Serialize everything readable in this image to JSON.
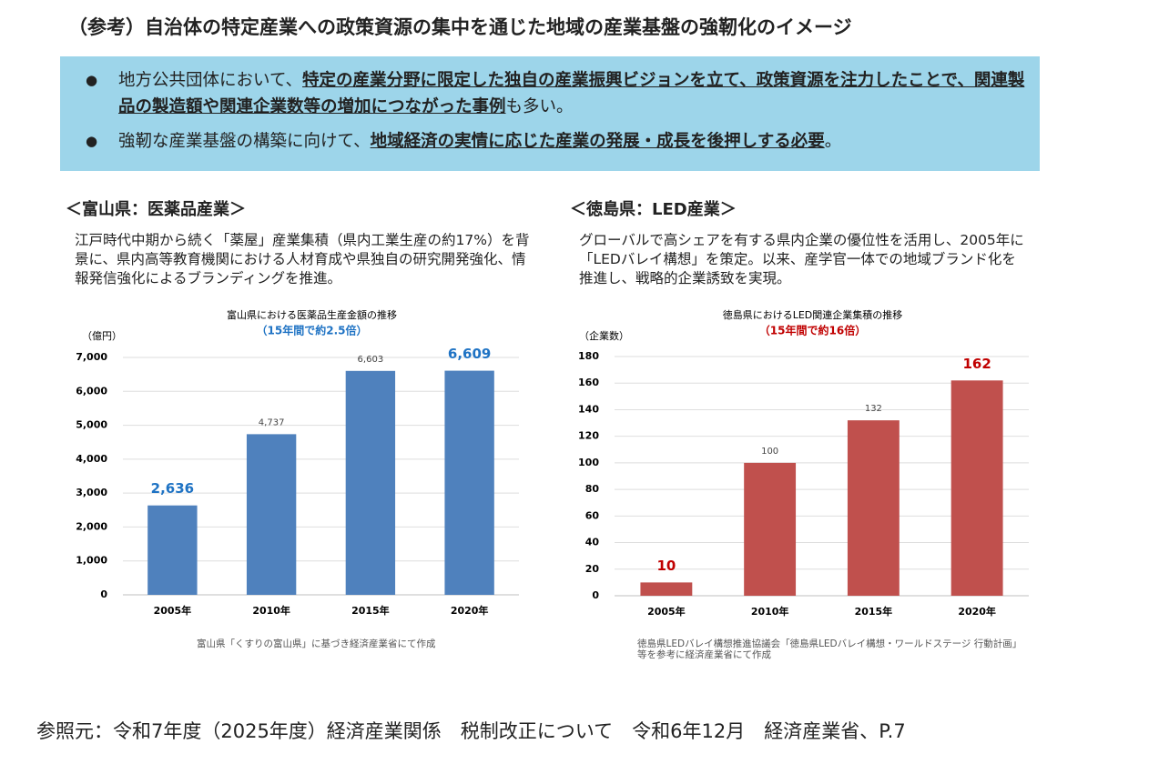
{
  "title": "（参考）自治体の特定産業への政策資源の集中を通じた地域の産業基盤の強靭化のイメージ",
  "bullets": [
    [
      {
        "text": "地方公共団体において、",
        "bold": false
      },
      {
        "text": "特定の産業分野に限定した独自の産業振興ビジョンを立て、政策資源を注力したことで、関連製品の製造額や関連企業数等の増加につながった事例",
        "bold": true
      },
      {
        "text": "も多い。",
        "bold": false
      }
    ],
    [
      {
        "text": "強靭な産業基盤の構築に向けて、",
        "bold": false
      },
      {
        "text": "地域経済の実情に応じた産業の発展・成長を後押しする必要",
        "bold": true
      },
      {
        "text": "。",
        "bold": false
      }
    ]
  ],
  "panels": [
    {
      "heading": "＜富山県：医薬品産業＞",
      "description": "江戸時代中期から続く「薬屋」産業集積（県内工業生産の約17%）を背景に、県内高等教育機関における人材育成や県独自の研究開発強化、情報発信強化によるブランディングを推進。",
      "source": [
        "富山県「くすりの富山県」に基づき経済産業省にて作成"
      ]
    },
    {
      "heading": "＜徳島県：LED産業＞",
      "description": "グローバルで高シェアを有する県内企業の優位性を活用し、2005年に「LEDバレイ構想」を策定。以来、産学官一体での地域ブランド化を推進し、戦略的企業誘致を実現。",
      "source": [
        "徳島県LEDバレイ構想推進協議会「徳島県LEDバレイ構想・ワールドステージ 行動計画」",
        "等を参考に経済産業省にて作成"
      ]
    }
  ],
  "chart_data": [
    {
      "type": "bar",
      "title": "富山県における医薬品生産金額の推移",
      "subtitle": "（15年間で約2.5倍）",
      "subtitle_color": "#1f73c4",
      "y_unit": "（億円）",
      "categories": [
        "2005年",
        "2010年",
        "2015年",
        "2020年"
      ],
      "values": [
        2636,
        4737,
        6603,
        6609
      ],
      "value_labels": [
        "2,636",
        "4,737",
        "6,603",
        "6,609"
      ],
      "highlight": [
        true,
        false,
        false,
        true
      ],
      "color": "#4f81bd",
      "highlight_color": "#1f73c4",
      "ylim": [
        0,
        7000
      ],
      "yticks": [
        0,
        {
          "value": 1000,
          "label": "1,000"
        },
        {
          "value": 2000,
          "label": "2,000"
        },
        {
          "value": 3000,
          "label": "3,000"
        },
        {
          "value": 4000,
          "label": "4,000"
        },
        {
          "value": 5000,
          "label": "5,000"
        },
        {
          "value": 6000,
          "label": "6,000"
        },
        {
          "value": 7000,
          "label": "7,000"
        }
      ],
      "grid": true
    },
    {
      "type": "bar",
      "title": "徳島県におけるLED関連企業集積の推移",
      "subtitle": "（15年間で約16倍）",
      "subtitle_color": "#c00000",
      "y_unit": "（企業数）",
      "categories": [
        "2005年",
        "2010年",
        "2015年",
        "2020年"
      ],
      "values": [
        10,
        100,
        132,
        162
      ],
      "highlight": [
        true,
        false,
        false,
        true
      ],
      "color": "#c0504d",
      "highlight_color": "#c00000",
      "ylim": [
        0,
        180
      ],
      "yticks": [
        0,
        20,
        40,
        60,
        80,
        100,
        120,
        140,
        160,
        180
      ],
      "grid": true
    }
  ],
  "footer": "参照元：令和7年度（2025年度）経済産業関係　税制改正について　令和6年12月　経済産業省、P.7"
}
